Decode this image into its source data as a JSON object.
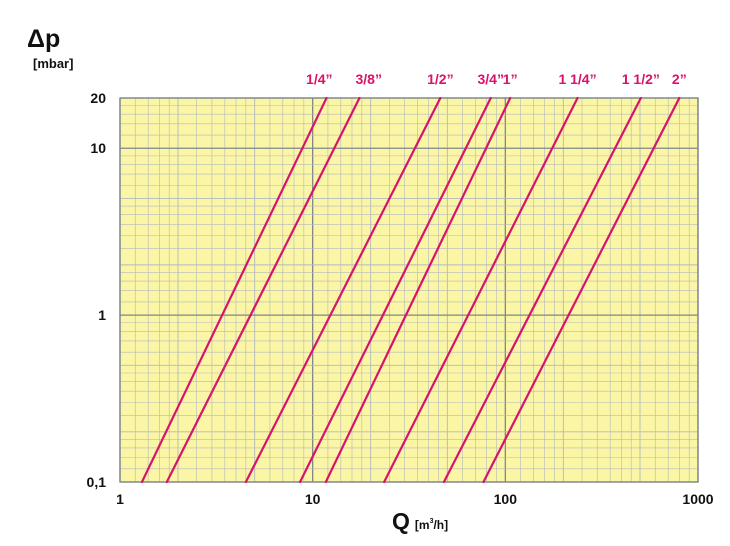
{
  "chart_data": {
    "type": "line",
    "title": "",
    "ylabel": "Δp",
    "ylabel_unit": "[mbar]",
    "xlabel": "Q",
    "xlabel_unit_prefix": "[m",
    "xlabel_unit_sup": "3",
    "xlabel_unit_suffix": "/h]",
    "x_scale": "log",
    "y_scale": "log",
    "xlim": [
      1,
      1000
    ],
    "ylim": [
      0.1,
      20
    ],
    "x_ticks": [
      {
        "value": 1,
        "label": "1"
      },
      {
        "value": 10,
        "label": "10"
      },
      {
        "value": 100,
        "label": "100"
      },
      {
        "value": 1000,
        "label": "1000"
      }
    ],
    "y_ticks": [
      {
        "value": 0.1,
        "label": "0,1"
      },
      {
        "value": 1,
        "label": "1"
      },
      {
        "value": 10,
        "label": "10"
      },
      {
        "value": 20,
        "label": "20"
      }
    ],
    "grid": true,
    "colors": {
      "background": "#fbf5a6",
      "grid_minor": "#b3b9bc",
      "grid_major": "#7e878c",
      "series": "#d8136b"
    },
    "series": [
      {
        "name": "1/4”",
        "points": [
          [
            1.3,
            0.1
          ],
          [
            11.8,
            20
          ]
        ]
      },
      {
        "name": "3/8”",
        "points": [
          [
            1.75,
            0.1
          ],
          [
            17.5,
            20
          ]
        ]
      },
      {
        "name": "1/2”",
        "points": [
          [
            4.5,
            0.1
          ],
          [
            46,
            20
          ]
        ]
      },
      {
        "name": "3/4”",
        "points": [
          [
            8.6,
            0.1
          ],
          [
            84,
            20
          ]
        ]
      },
      {
        "name": "1”",
        "points": [
          [
            11.7,
            0.1
          ],
          [
            106,
            20
          ]
        ]
      },
      {
        "name": "1 1/4”",
        "points": [
          [
            23.5,
            0.1
          ],
          [
            237,
            20
          ]
        ]
      },
      {
        "name": "1 1/2”",
        "points": [
          [
            48,
            0.1
          ],
          [
            505,
            20
          ]
        ]
      },
      {
        "name": "2”",
        "points": [
          [
            77,
            0.1
          ],
          [
            800,
            20
          ]
        ]
      }
    ]
  }
}
